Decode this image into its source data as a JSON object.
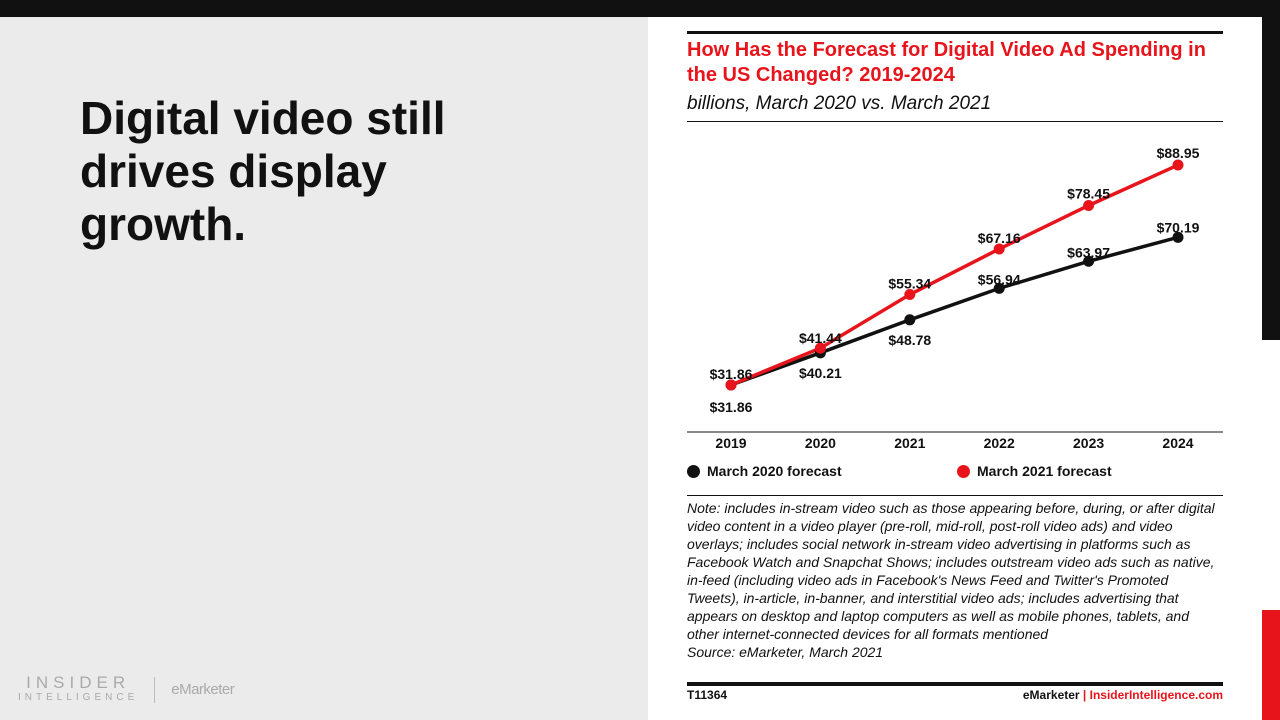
{
  "slide": {
    "headline": "Digital video still drives display growth."
  },
  "logo": {
    "line1": "INSIDER",
    "line2": "INTELLIGENCE",
    "brand2": "eMarketer"
  },
  "colors": {
    "accent": "#e8141c",
    "dark": "#111111"
  },
  "chart_data": {
    "type": "line",
    "title": "How Has the Forecast for Digital Video Ad Spending in the US Changed? 2019-2024",
    "subtitle": "billions, March 2020 vs. March 2021",
    "categories": [
      "2019",
      "2020",
      "2021",
      "2022",
      "2023",
      "2024"
    ],
    "series": [
      {
        "name": "March 2020 forecast",
        "color": "#111111",
        "values": [
          31.86,
          40.21,
          48.78,
          56.94,
          63.97,
          70.19
        ],
        "labels": [
          "$31.86",
          "$40.21",
          "$48.78",
          "$56.94",
          "$63.97",
          "$70.19"
        ]
      },
      {
        "name": "March 2021 forecast",
        "color": "#e8141c",
        "values": [
          31.86,
          41.44,
          55.34,
          67.16,
          78.45,
          88.95
        ],
        "labels": [
          "$31.86",
          "$41.44",
          "$55.34",
          "$67.16",
          "$78.45",
          "$88.95"
        ]
      }
    ],
    "legend_position": "bottom",
    "grid": false
  },
  "note": "Note: includes in-stream video such as those appearing before, during, or after digital video content in a video player (pre-roll, mid-roll, post-roll video ads) and video overlays; includes social network in-stream video advertising in platforms such as Facebook Watch and Snapchat Shows; includes outstream video ads such as native, in-feed (including video ads in Facebook's News Feed and Twitter's Promoted Tweets), in-article, in-banner, and interstitial video ads; includes advertising that appears on desktop and laptop computers as well as mobile phones, tablets, and other internet-connected devices for all formats mentioned",
  "source": "Source: eMarketer, March 2021",
  "footer": {
    "id": "T11364",
    "brand": "eMarketer",
    "sep": "|",
    "site": "InsiderIntelligence.com"
  }
}
